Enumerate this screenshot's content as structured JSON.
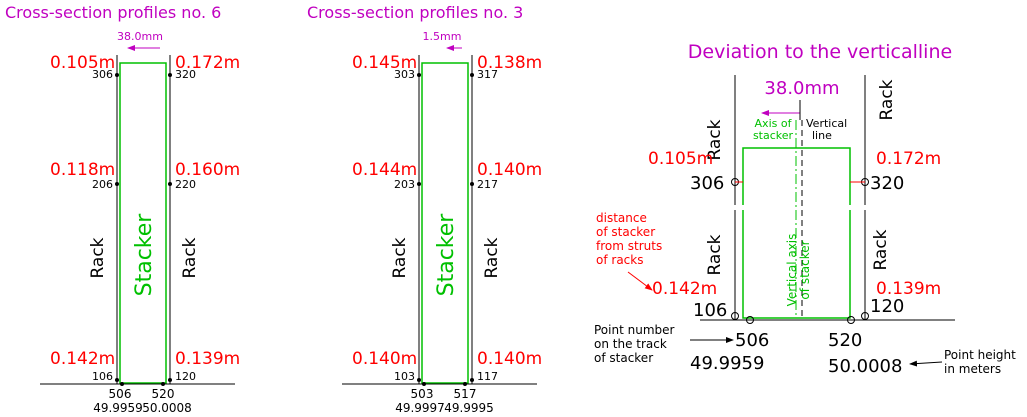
{
  "panel6": {
    "title": "Cross-section profiles no. 6",
    "offset": "38.0mm",
    "top_left": "0.105m",
    "top_left_pt": "306",
    "top_right": "0.172m",
    "top_right_pt": "320",
    "mid_left": "0.118m",
    "mid_left_pt": "206",
    "mid_right": "0.160m",
    "mid_right_pt": "220",
    "rack_left": "Rack",
    "stacker": "Stacker",
    "rack_right": "Rack",
    "bot_left": "0.142m",
    "bot_left_pt": "106",
    "bot_right": "0.139m",
    "bot_right_pt": "120",
    "track_left": "506",
    "height_left": "49.9959",
    "track_right": "520",
    "height_right": "50.0008"
  },
  "panel3": {
    "title": "Cross-section profiles no. 3",
    "offset": "1.5mm",
    "top_left": "0.145m",
    "top_left_pt": "303",
    "top_right": "0.138m",
    "top_right_pt": "317",
    "mid_left": "0.144m",
    "mid_left_pt": "203",
    "mid_right": "0.140m",
    "mid_right_pt": "217",
    "rack_left": "Rack",
    "stacker": "Stacker",
    "rack_right": "Rack",
    "bot_left": "0.140m",
    "bot_left_pt": "103",
    "bot_right": "0.140m",
    "bot_right_pt": "117",
    "track_left": "503",
    "height_left": "49.9997",
    "track_right": "517",
    "height_right": "49.9995"
  },
  "deviation": {
    "title": "Deviation to the verticalline",
    "offset": "38.0mm",
    "rack_top_left": "Rack",
    "rack_top_right": "Rack",
    "axis_label": [
      "Axis of",
      "stacker"
    ],
    "vertical_label": [
      "Vertical",
      "line"
    ],
    "top_left": "0.105m",
    "top_left_pt": "306",
    "top_right": "0.172m",
    "top_right_pt": "320",
    "distance_note": [
      "distance",
      "of stacker",
      "from struts",
      "of racks"
    ],
    "rack_bot_left": "Rack",
    "rack_bot_right": "Rack",
    "vertical_axis_label": [
      "Vertical axis",
      "of stacker"
    ],
    "bot_left": "0.142m",
    "bot_left_pt": "106",
    "bot_right": "0.139m",
    "bot_right_pt": "120",
    "point_number_note": [
      "Point number",
      "on the track",
      "of stacker"
    ],
    "track_left": "506",
    "track_right": "520",
    "height_left": "49.9959",
    "height_right": "50.0008",
    "point_height_note": [
      "Point height",
      "in meters"
    ]
  }
}
